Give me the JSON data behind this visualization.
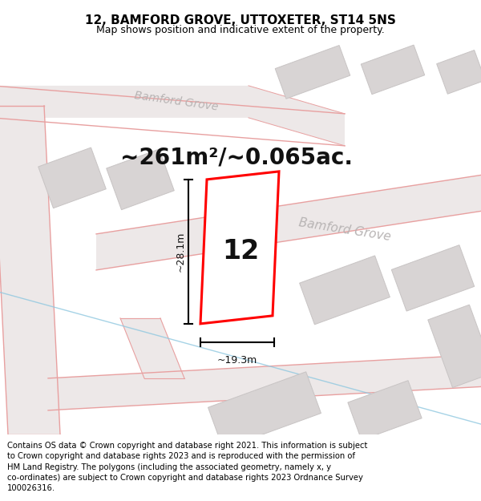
{
  "title": "12, BAMFORD GROVE, UTTOXETER, ST14 5NS",
  "subtitle": "Map shows position and indicative extent of the property.",
  "area_text": "~261m²/~0.065ac.",
  "width_label": "~19.3m",
  "height_label": "~28.1m",
  "number_label": "12",
  "footer": "Contains OS data © Crown copyright and database right 2021. This information is subject to Crown copyright and database rights 2023 and is reproduced with the permission of HM Land Registry. The polygons (including the associated geometry, namely x, y co-ordinates) are subject to Crown copyright and database rights 2023 Ordnance Survey 100026316.",
  "bg_color": "#ffffff",
  "map_bg": "#f7f2f2",
  "road_fill": "#ede8e8",
  "road_edge": "#e8a0a0",
  "building_color": "#d8d4d4",
  "building_edge": "#c8c4c4",
  "plot_fill": "#ffffff",
  "plot_edge": "#ff0000",
  "road_text_color": "#b8b4b4",
  "blue_line_color": "#90c8e0",
  "title_fontsize": 11,
  "subtitle_fontsize": 9,
  "area_fontsize": 20,
  "label_fontsize": 9,
  "number_fontsize": 24,
  "footer_fontsize": 7.2
}
